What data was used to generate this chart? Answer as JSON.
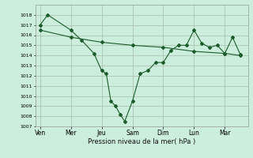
{
  "xlabel": "Pression niveau de la mer( hPa )",
  "background_color": "#cceedd",
  "grid_color": "#aabbaa",
  "line_color": "#1a5c2a",
  "ylim_min": 1007,
  "ylim_max": 1019,
  "yticks": [
    1007,
    1008,
    1009,
    1010,
    1011,
    1012,
    1013,
    1014,
    1015,
    1016,
    1017,
    1018
  ],
  "xtick_labels": [
    "Ven",
    "Mer",
    "Jeu",
    "Sam",
    "Dim",
    "Lun",
    "Mar"
  ],
  "line1_x": [
    0,
    0.5,
    2,
    2.7,
    3.5,
    4.0,
    4.3,
    4.6,
    4.9,
    5.2,
    5.5,
    6.0,
    6.5,
    7.0,
    7.5,
    8.0,
    8.5,
    9.0,
    9.5,
    10.0,
    10.5,
    11.0,
    11.5,
    12.0,
    12.5,
    13.0
  ],
  "line1_y": [
    1017.0,
    1018.0,
    1016.5,
    1015.5,
    1014.2,
    1012.5,
    1012.2,
    1009.5,
    1009.0,
    1008.2,
    1007.5,
    1009.5,
    1012.2,
    1012.5,
    1013.3,
    1013.3,
    1014.5,
    1015.0,
    1015.0,
    1016.5,
    1015.2,
    1014.8,
    1015.0,
    1014.2,
    1015.8,
    1014.1
  ],
  "line2_x": [
    0,
    2,
    4,
    6,
    8,
    10,
    12,
    13.0
  ],
  "line2_y": [
    1016.5,
    1015.8,
    1015.3,
    1015.0,
    1014.8,
    1014.4,
    1014.2,
    1014.0
  ],
  "xtick_positions": [
    0,
    2,
    4,
    6,
    8,
    10,
    12
  ],
  "ylabel_fontsize": 4.5,
  "xlabel_fontsize": 6.0,
  "xtick_fontsize": 5.5,
  "marker_size": 2.0,
  "linewidth": 0.8
}
